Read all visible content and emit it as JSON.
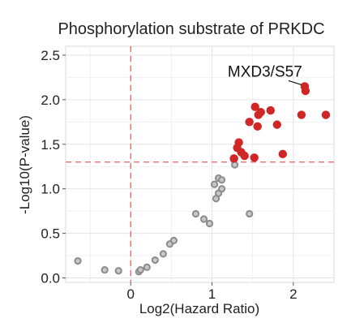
{
  "chart_data": {
    "type": "scatter",
    "title": "Phosphorylation substrate of PRKDC",
    "xlabel": "Log2(Hazard Ratio)",
    "ylabel": "-Log10(P-value)",
    "xlim": [
      -0.8,
      2.5
    ],
    "ylim": [
      -0.05,
      2.6
    ],
    "x_ticks": [
      {
        "value": 0,
        "label": "0"
      },
      {
        "value": 1,
        "label": "1"
      },
      {
        "value": 2,
        "label": "2"
      }
    ],
    "y_ticks": [
      {
        "value": 0.0,
        "label": "0.0"
      },
      {
        "value": 0.5,
        "label": "0.5"
      },
      {
        "value": 1.0,
        "label": "1.0"
      },
      {
        "value": 1.5,
        "label": "1.5"
      },
      {
        "value": 2.0,
        "label": "2.0"
      },
      {
        "value": 2.5,
        "label": "2.5"
      }
    ],
    "grid": true,
    "thresholds": {
      "x": 0,
      "y": 1.3
    },
    "series": [
      {
        "color": "#8c8c8c",
        "points": [
          {
            "x": -0.65,
            "y": 0.19
          },
          {
            "x": -0.32,
            "y": 0.09
          },
          {
            "x": -0.15,
            "y": 0.08
          },
          {
            "x": 0.1,
            "y": 0.07
          },
          {
            "x": 0.12,
            "y": 0.09
          },
          {
            "x": 0.2,
            "y": 0.12
          },
          {
            "x": 0.3,
            "y": 0.2
          },
          {
            "x": 0.4,
            "y": 0.27
          },
          {
            "x": 0.48,
            "y": 0.38
          },
          {
            "x": 0.53,
            "y": 0.42
          },
          {
            "x": 0.8,
            "y": 0.72
          },
          {
            "x": 0.9,
            "y": 0.66
          },
          {
            "x": 0.97,
            "y": 0.61
          },
          {
            "x": 1.05,
            "y": 0.89
          },
          {
            "x": 1.08,
            "y": 0.95
          },
          {
            "x": 1.03,
            "y": 1.05
          },
          {
            "x": 1.08,
            "y": 1.12
          },
          {
            "x": 1.12,
            "y": 1.1
          },
          {
            "x": 1.12,
            "y": 1.0
          },
          {
            "x": 1.28,
            "y": 1.27
          },
          {
            "x": 1.46,
            "y": 0.72
          }
        ]
      },
      {
        "color": "#d02626",
        "points": [
          {
            "x": 1.27,
            "y": 1.34
          },
          {
            "x": 1.31,
            "y": 1.46
          },
          {
            "x": 1.33,
            "y": 1.52
          },
          {
            "x": 1.36,
            "y": 1.41
          },
          {
            "x": 1.4,
            "y": 1.37
          },
          {
            "x": 1.46,
            "y": 1.75
          },
          {
            "x": 1.52,
            "y": 1.35
          },
          {
            "x": 1.53,
            "y": 1.92
          },
          {
            "x": 1.56,
            "y": 1.7
          },
          {
            "x": 1.57,
            "y": 1.83
          },
          {
            "x": 1.6,
            "y": 1.86
          },
          {
            "x": 1.72,
            "y": 1.88
          },
          {
            "x": 1.8,
            "y": 1.72
          },
          {
            "x": 1.87,
            "y": 1.39
          },
          {
            "x": 2.1,
            "y": 1.83
          },
          {
            "x": 2.14,
            "y": 2.15
          },
          {
            "x": 2.15,
            "y": 2.1
          },
          {
            "x": 2.4,
            "y": 1.83
          }
        ]
      }
    ],
    "annotations": [
      {
        "text": "MXD3/S57",
        "x": 2.14,
        "y": 2.15
      }
    ]
  }
}
